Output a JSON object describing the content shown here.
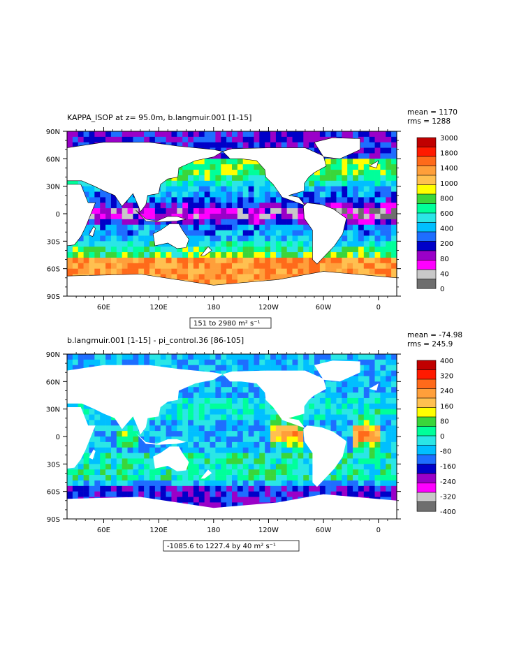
{
  "chart_data": [
    {
      "type": "heatmap",
      "title": "KAPPA_ISOP at z=  95.0m, b.langmuir.001 [1-15]",
      "stats": {
        "mean": "mean = 1170",
        "rms": "rms = 1288"
      },
      "range_label": "151 to 2980 m² s⁻¹",
      "xticks": [
        "60E",
        "120E",
        "180",
        "120W",
        "60W",
        "0"
      ],
      "yticks": [
        "90N",
        "60N",
        "30N",
        "0",
        "30S",
        "60S",
        "90S"
      ],
      "colorbar": {
        "labels": [
          "3000",
          "1800",
          "1400",
          "1000",
          "800",
          "600",
          "400",
          "200",
          "80",
          "40",
          "0"
        ],
        "colors": [
          "#c00000",
          "#ff1a00",
          "#ff6a1a",
          "#ff9f3a",
          "#ffc050",
          "#ffff00",
          "#3ad63a",
          "#00ff9a",
          "#2ae6e6",
          "#00bfff",
          "#1e6eff",
          "#0000c8",
          "#9a00c8",
          "#ff00ff",
          "#c8c8c8",
          "#6e6e6e"
        ]
      },
      "pattern": "positive"
    },
    {
      "type": "heatmap",
      "title": "b.langmuir.001 [1-15] - pi_control.36 [86-105]",
      "stats": {
        "mean": "mean = -74.98",
        "rms": "rms = 245.9"
      },
      "range_label": "-1085.6 to 1227.4 by 40 m² s⁻¹",
      "xticks": [
        "60E",
        "120E",
        "180",
        "120W",
        "60W",
        "0"
      ],
      "yticks": [
        "90N",
        "60N",
        "30N",
        "0",
        "30S",
        "60S",
        "90S"
      ],
      "colorbar": {
        "labels": [
          "400",
          "320",
          "240",
          "160",
          "80",
          "0",
          "-80",
          "-160",
          "-240",
          "-320",
          "-400"
        ],
        "colors": [
          "#c00000",
          "#ff1a00",
          "#ff6a1a",
          "#ff9f3a",
          "#ffc050",
          "#ffff00",
          "#3ad63a",
          "#00ff9a",
          "#2ae6e6",
          "#00bfff",
          "#1e6eff",
          "#0000c8",
          "#9a00c8",
          "#ff00ff",
          "#c8c8c8",
          "#6e6e6e"
        ]
      },
      "pattern": "difference"
    }
  ]
}
